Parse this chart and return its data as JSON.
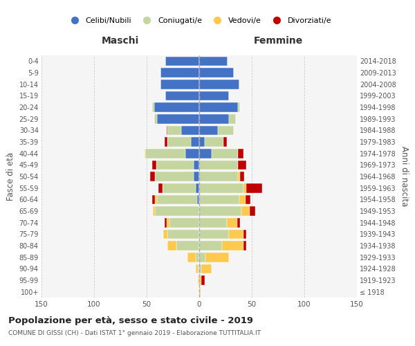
{
  "age_groups": [
    "100+",
    "95-99",
    "90-94",
    "85-89",
    "80-84",
    "75-79",
    "70-74",
    "65-69",
    "60-64",
    "55-59",
    "50-54",
    "45-49",
    "40-44",
    "35-39",
    "30-34",
    "25-29",
    "20-24",
    "15-19",
    "10-14",
    "5-9",
    "0-4"
  ],
  "birth_years": [
    "≤ 1918",
    "1919-1923",
    "1924-1928",
    "1929-1933",
    "1934-1938",
    "1939-1943",
    "1944-1948",
    "1949-1953",
    "1954-1958",
    "1959-1963",
    "1964-1968",
    "1969-1973",
    "1974-1978",
    "1979-1983",
    "1984-1988",
    "1989-1993",
    "1994-1998",
    "1999-2003",
    "2004-2008",
    "2009-2013",
    "2014-2018"
  ],
  "colors": {
    "celibe": "#4472c4",
    "coniugato": "#c5d5a0",
    "vedovo": "#ffc94d",
    "divorziato": "#c00000"
  },
  "maschi": {
    "celibe": [
      0,
      0,
      0,
      0,
      0,
      0,
      0,
      0,
      2,
      3,
      5,
      5,
      13,
      8,
      17,
      40,
      43,
      32,
      37,
      37,
      32
    ],
    "coniugato": [
      0,
      0,
      1,
      3,
      22,
      30,
      28,
      42,
      38,
      32,
      37,
      36,
      38,
      22,
      13,
      3,
      2,
      0,
      0,
      0,
      0
    ],
    "vedovo": [
      0,
      1,
      2,
      8,
      8,
      4,
      3,
      2,
      2,
      0,
      0,
      0,
      1,
      0,
      0,
      0,
      0,
      0,
      0,
      0,
      0
    ],
    "divorziato": [
      0,
      0,
      0,
      0,
      0,
      0,
      2,
      0,
      3,
      4,
      5,
      4,
      0,
      3,
      1,
      0,
      0,
      0,
      0,
      0,
      0
    ]
  },
  "femmine": {
    "nubile": [
      0,
      0,
      0,
      0,
      0,
      0,
      0,
      0,
      0,
      0,
      0,
      0,
      12,
      5,
      18,
      28,
      37,
      28,
      38,
      33,
      27
    ],
    "coniugata": [
      0,
      0,
      2,
      6,
      22,
      28,
      26,
      40,
      38,
      42,
      37,
      37,
      25,
      18,
      15,
      7,
      2,
      0,
      0,
      0,
      0
    ],
    "vedova": [
      1,
      2,
      10,
      22,
      20,
      14,
      10,
      8,
      6,
      3,
      2,
      0,
      0,
      0,
      0,
      0,
      0,
      0,
      0,
      0,
      0
    ],
    "divorziata": [
      0,
      3,
      0,
      0,
      3,
      3,
      3,
      5,
      5,
      15,
      4,
      8,
      5,
      3,
      0,
      0,
      0,
      0,
      0,
      0,
      0
    ]
  },
  "title": "Popolazione per età, sesso e stato civile - 2019",
  "subtitle": "COMUNE DI GISSI (CH) - Dati ISTAT 1° gennaio 2019 - Elaborazione TUTTITALIA.IT",
  "xlabel_left": "Maschi",
  "xlabel_right": "Femmine",
  "ylabel_left": "Fasce di età",
  "ylabel_right": "Anni di nascita",
  "xlim": 150,
  "legend_labels": [
    "Celibi/Nubili",
    "Coniugati/e",
    "Vedovi/e",
    "Divorziati/e"
  ],
  "bg_color": "#f5f5f5"
}
